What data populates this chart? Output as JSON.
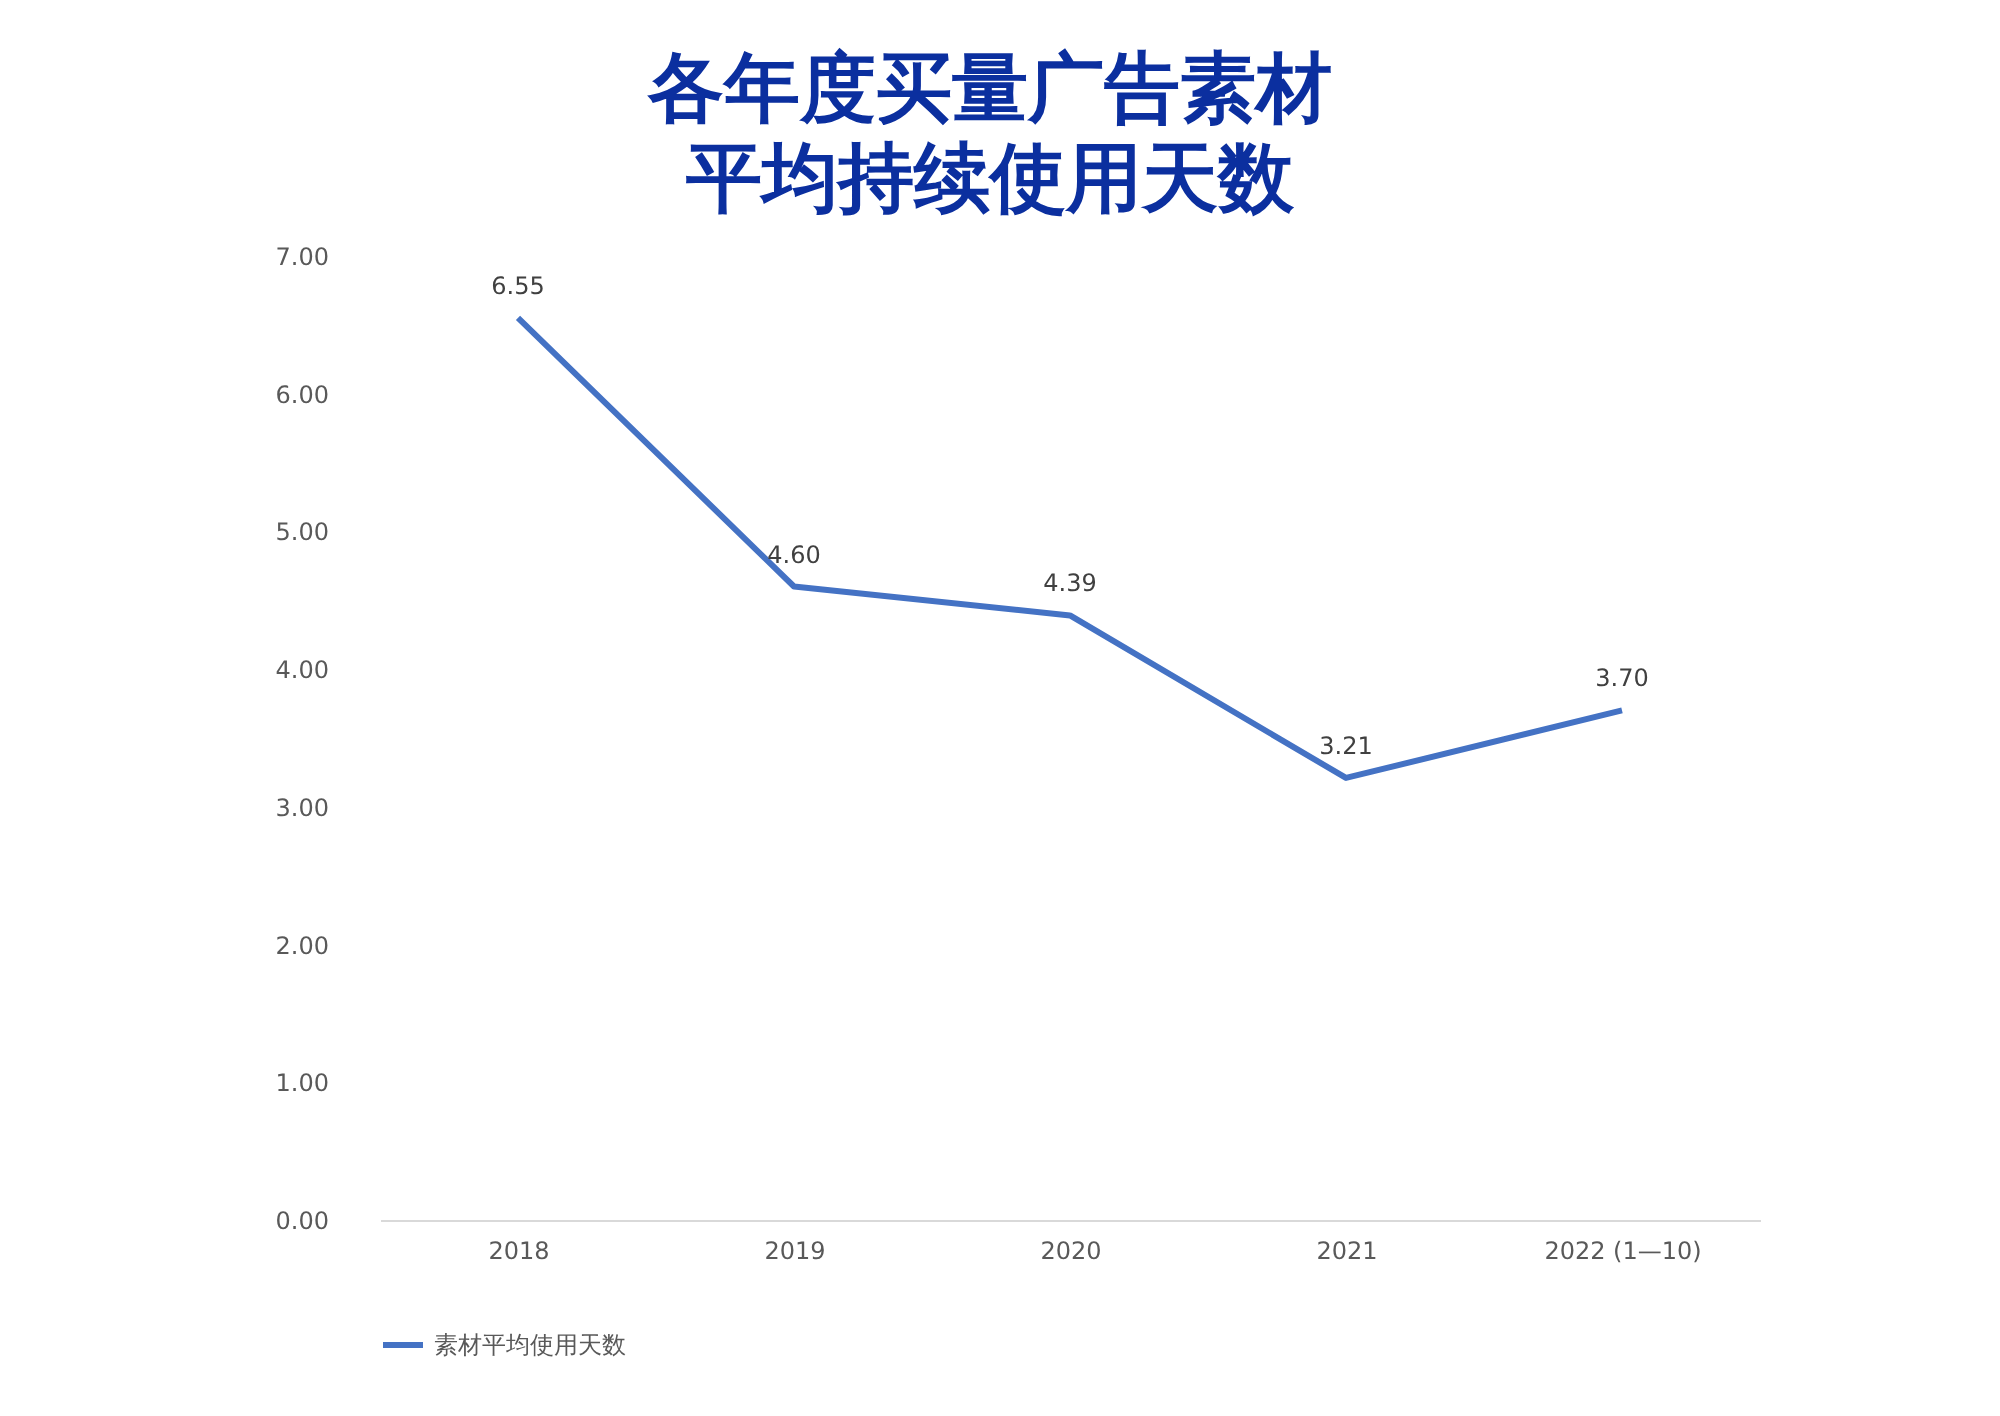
{
  "chart_data": {
    "type": "line",
    "title": "各年度买量广告素材平均持续使用天数",
    "categories": [
      "2018",
      "2019",
      "2020",
      "2021",
      "2022 (1—10)"
    ],
    "series": [
      {
        "name": "素材平均使用天数",
        "color": "#4472c4",
        "values": [
          6.55,
          4.6,
          4.39,
          3.21,
          3.7
        ],
        "value_labels": [
          "6.55",
          "4.60",
          "4.39",
          "3.21",
          "3.70"
        ]
      }
    ],
    "ylim": [
      0,
      7
    ],
    "yticks": [
      {
        "value": 0,
        "label": "0.00"
      },
      {
        "value": 1,
        "label": "1.00"
      },
      {
        "value": 2,
        "label": "2.00"
      },
      {
        "value": 3,
        "label": "3.00"
      },
      {
        "value": 4,
        "label": "4.00"
      },
      {
        "value": 5,
        "label": "5.00"
      },
      {
        "value": 6,
        "label": "6.00"
      },
      {
        "value": 7,
        "label": "7.00"
      }
    ],
    "grid": false,
    "legend": "bottom"
  }
}
